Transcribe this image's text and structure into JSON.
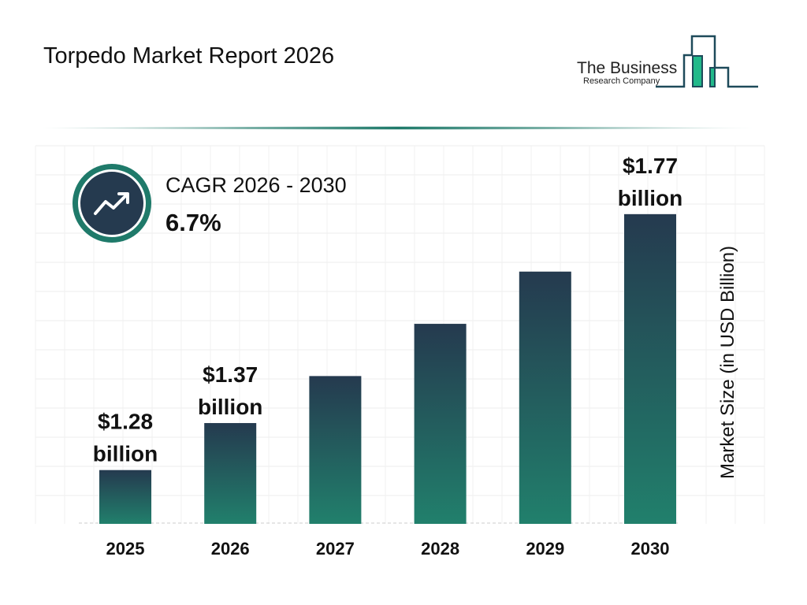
{
  "title": "Torpedo Market Report 2026",
  "logo": {
    "line1": "The Business",
    "line2": "Research Company"
  },
  "cagr": {
    "label": "CAGR 2026 - 2030",
    "value": "6.7%",
    "icon": "trend-up-arrow-icon"
  },
  "colors": {
    "bar_top": "#253a4f",
    "bar_bottom": "#21806c",
    "accent": "#1f7a6a"
  },
  "chart_data": {
    "type": "bar",
    "categories": [
      "2025",
      "2026",
      "2027",
      "2028",
      "2029",
      "2030"
    ],
    "values": [
      1.28,
      1.37,
      1.46,
      1.56,
      1.66,
      1.77
    ],
    "data_labels": [
      "$1.28 billion",
      "$1.37 billion",
      "",
      "",
      "",
      "$1.77 billion"
    ],
    "ylabel": "Market Size (in USD Billion)",
    "grid": true
  }
}
